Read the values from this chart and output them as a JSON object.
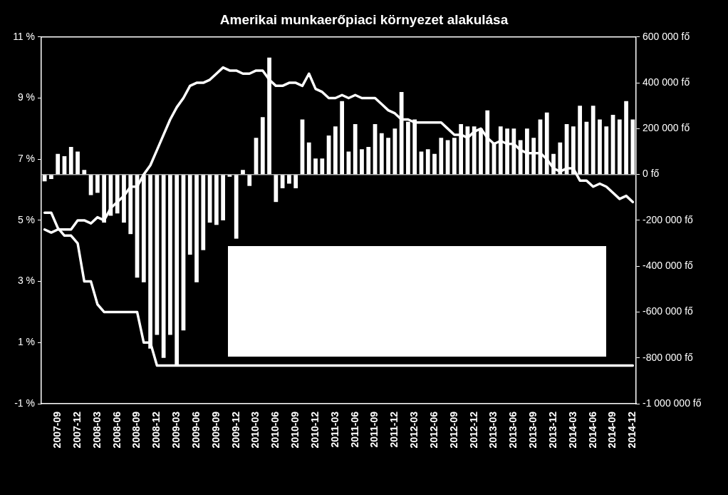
{
  "chart_data": {
    "type": "bar",
    "title": "Amerikai munkaerőpiaci környezet alakulása",
    "categories": [
      null,
      null,
      "2007-09",
      null,
      null,
      "2007-12",
      null,
      null,
      "2008-03",
      null,
      null,
      "2008-06",
      null,
      null,
      "2008-09",
      null,
      null,
      "2008-12",
      null,
      null,
      "2009-03",
      null,
      null,
      "2009-06",
      null,
      null,
      "2009-09",
      null,
      null,
      "2009-12",
      null,
      null,
      "2010-03",
      null,
      null,
      "2010-06",
      null,
      null,
      "2010-09",
      null,
      null,
      "2010-12",
      null,
      null,
      "2011-03",
      null,
      null,
      "2011-06",
      null,
      null,
      "2011-09",
      null,
      null,
      "2011-12",
      null,
      null,
      "2012-03",
      null,
      null,
      "2012-06",
      null,
      null,
      "2012-09",
      null,
      null,
      "2012-12",
      null,
      null,
      "2013-03",
      null,
      null,
      "2013-06",
      null,
      null,
      "2013-09",
      null,
      null,
      "2013-12",
      null,
      null,
      "2014-03",
      null,
      null,
      "2014-06",
      null,
      null,
      "2014-09",
      null,
      null,
      "2014-12"
    ],
    "series": [
      {
        "axis": "y2",
        "color": "#ffffff",
        "values": [
          -30000,
          -20000,
          90000,
          80000,
          120000,
          100000,
          20000,
          -90000,
          -80000,
          -210000,
          -180000,
          -170000,
          -210000,
          -260000,
          -450000,
          -470000,
          -760000,
          -700000,
          -800000,
          -700000,
          -830000,
          -680000,
          -350000,
          -470000,
          -330000,
          -210000,
          -220000,
          -200000,
          -10000,
          -280000,
          20000,
          -50000,
          160000,
          250000,
          510000,
          -120000,
          -60000,
          -40000,
          -60000,
          240000,
          140000,
          70000,
          70000,
          170000,
          210000,
          320000,
          100000,
          220000,
          110000,
          120000,
          220000,
          180000,
          160000,
          200000,
          360000,
          230000,
          240000,
          100000,
          110000,
          90000,
          160000,
          150000,
          160000,
          220000,
          210000,
          210000,
          200000,
          280000,
          140000,
          210000,
          200000,
          200000,
          150000,
          200000,
          160000,
          240000,
          270000,
          90000,
          140000,
          220000,
          210000,
          300000,
          230000,
          300000,
          240000,
          210000,
          260000,
          240000,
          320000,
          240000
        ]
      },
      {
        "type": "line",
        "axis": "y",
        "color": "#ffffff",
        "values": [
          4.7,
          4.6,
          4.7,
          4.7,
          4.7,
          5.0,
          5.0,
          4.9,
          5.1,
          5.0,
          5.4,
          5.6,
          5.8,
          6.1,
          6.1,
          6.5,
          6.8,
          7.3,
          7.8,
          8.3,
          8.7,
          9.0,
          9.4,
          9.5,
          9.5,
          9.6,
          9.8,
          10.0,
          9.9,
          9.9,
          9.8,
          9.8,
          9.9,
          9.9,
          9.6,
          9.4,
          9.4,
          9.5,
          9.5,
          9.4,
          9.8,
          9.3,
          9.2,
          9.0,
          9.0,
          9.1,
          9.0,
          9.1,
          9.0,
          9.0,
          9.0,
          8.8,
          8.6,
          8.5,
          8.3,
          8.3,
          8.2,
          8.2,
          8.2,
          8.2,
          8.2,
          8.0,
          7.8,
          7.8,
          7.7,
          7.9,
          8.0,
          7.7,
          7.5,
          7.6,
          7.5,
          7.5,
          7.3,
          7.2,
          7.2,
          7.2,
          7.0,
          6.7,
          6.6,
          6.7,
          6.7,
          6.3,
          6.3,
          6.1,
          6.2,
          6.1,
          5.9,
          5.7,
          5.8,
          5.6
        ]
      },
      {
        "type": "line",
        "axis": "y",
        "color": "#ffffff",
        "values": [
          5.25,
          5.25,
          4.75,
          4.5,
          4.5,
          4.25,
          3.0,
          3.0,
          2.25,
          2.0,
          2.0,
          2.0,
          2.0,
          2.0,
          2.0,
          1.0,
          1.0,
          0.25,
          0.25,
          0.25,
          0.25,
          0.25,
          0.25,
          0.25,
          0.25,
          0.25,
          0.25,
          0.25,
          0.25,
          0.25,
          0.25,
          0.25,
          0.25,
          0.25,
          0.25,
          0.25,
          0.25,
          0.25,
          0.25,
          0.25,
          0.25,
          0.25,
          0.25,
          0.25,
          0.25,
          0.25,
          0.25,
          0.25,
          0.25,
          0.25,
          0.25,
          0.25,
          0.25,
          0.25,
          0.25,
          0.25,
          0.25,
          0.25,
          0.25,
          0.25,
          0.25,
          0.25,
          0.25,
          0.25,
          0.25,
          0.25,
          0.25,
          0.25,
          0.25,
          0.25,
          0.25,
          0.25,
          0.25,
          0.25,
          0.25,
          0.25,
          0.25,
          0.25,
          0.25,
          0.25,
          0.25,
          0.25,
          0.25,
          0.25,
          0.25,
          0.25,
          0.25,
          0.25,
          0.25,
          0.25
        ]
      }
    ],
    "ylim": [
      -1,
      11
    ],
    "yticks": [
      {
        "value": -1,
        "label": "-1 %"
      },
      {
        "value": 1,
        "label": "1 %"
      },
      {
        "value": 3,
        "label": "3 %"
      },
      {
        "value": 5,
        "label": "5 %"
      },
      {
        "value": 7,
        "label": "7 %"
      },
      {
        "value": 9,
        "label": "9 %"
      },
      {
        "value": 11,
        "label": "11 %"
      }
    ],
    "y2lim": [
      -1000000,
      600000
    ],
    "y2ticks": [
      {
        "value": -1000000,
        "label": "-1 000 000 fő"
      },
      {
        "value": -800000,
        "label": "-800 000 fő"
      },
      {
        "value": -600000,
        "label": "-600 000 fő"
      },
      {
        "value": -400000,
        "label": "-400 000 fő"
      },
      {
        "value": -200000,
        "label": "-200 000 fő"
      },
      {
        "value": 0,
        "label": "0 fő"
      },
      {
        "value": 200000,
        "label": "200 000 fő"
      },
      {
        "value": 400000,
        "label": "400 000 fő"
      },
      {
        "value": 600000,
        "label": "600 000 fő"
      }
    ],
    "ref_lines": [
      {
        "axis": "y2",
        "value": 0,
        "color": "#a6a6a6"
      }
    ],
    "grid": false,
    "legend": false
  }
}
